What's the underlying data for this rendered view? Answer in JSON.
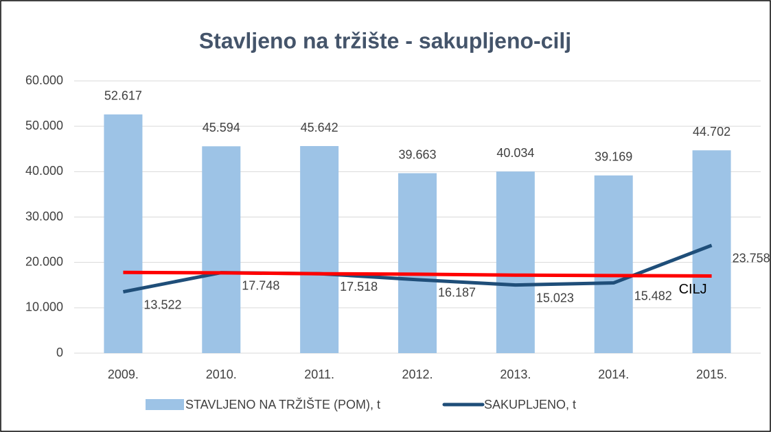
{
  "chart_data": {
    "type": "bar_line",
    "title": "Stavljeno na tržište - sakupljeno-cilj",
    "categories": [
      "2009.",
      "2010.",
      "2011.",
      "2012.",
      "2013.",
      "2014.",
      "2015."
    ],
    "series": [
      {
        "name": "STAVLJENO NA TRŽIŠTE (POM), t",
        "type": "bar",
        "color": "#9dc3e6",
        "values": [
          52617,
          45594,
          45642,
          39663,
          40034,
          39169,
          44702
        ],
        "value_labels": [
          "52.617",
          "45.594",
          "45.642",
          "39.663",
          "40.034",
          "39.169",
          "44.702"
        ]
      },
      {
        "name": "SAKUPLJENO, t",
        "type": "line",
        "color": "#1f4e79",
        "values": [
          13522,
          17748,
          17518,
          16187,
          15023,
          15482,
          23758
        ],
        "value_labels": [
          "13.522",
          "17.748",
          "17.518",
          "16.187",
          "15.023",
          "15.482",
          "23.758"
        ]
      },
      {
        "name": "CILJ",
        "type": "line",
        "color": "#ff0000",
        "legend": false,
        "values": [
          17800,
          17700,
          17500,
          17400,
          17200,
          17100,
          17000
        ]
      }
    ],
    "ylim": [
      0,
      60000
    ],
    "yticks": [
      0,
      {
        "value": 10000,
        "label": "10.000"
      },
      {
        "value": 20000,
        "label": "20.000"
      },
      {
        "value": 30000,
        "label": "30.000"
      },
      {
        "value": 40000,
        "label": "40.000"
      },
      {
        "value": 50000,
        "label": "50.000"
      },
      {
        "value": 60000,
        "label": "60.000"
      }
    ],
    "grid": true
  }
}
